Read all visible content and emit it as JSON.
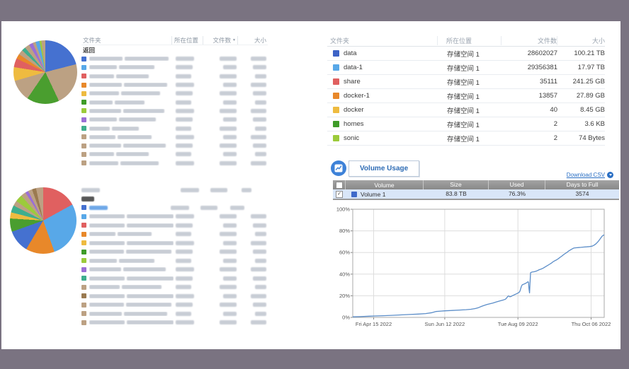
{
  "colors": {
    "frame": "#7a7381",
    "accent_blue": "#2e6cb5",
    "link_blue": "#2a6fc4",
    "chart_line": "#5b8dc8",
    "volume_row_bg": "#d9e6f8"
  },
  "left": {
    "table1": {
      "header": {
        "folder": "文件夹",
        "location": "所在位置",
        "count": "文件数",
        "size": "大小",
        "sort_arrow": "▼"
      },
      "back_label": "返回",
      "rows": [
        {
          "color": "#4571d0",
          "redacted": true
        },
        {
          "color": "#58a8e8",
          "redacted": true
        },
        {
          "color": "#e06060",
          "redacted": true
        },
        {
          "color": "#e8882a",
          "redacted": true
        },
        {
          "color": "#eebb40",
          "redacted": true
        },
        {
          "color": "#3f9c28",
          "redacted": true
        },
        {
          "color": "#9ccb3b",
          "redacted": true
        },
        {
          "color": "#9b6fd6",
          "redacted": true
        },
        {
          "color": "#3fae8e",
          "redacted": true
        },
        {
          "color": "#bca183",
          "redacted": true
        },
        {
          "color": "#bca183",
          "redacted": true
        },
        {
          "color": "#bca183",
          "redacted": true
        },
        {
          "color": "#bca183",
          "redacted": true
        }
      ]
    },
    "pie1": {
      "segments": [
        {
          "color": "#4571d0",
          "value": 21
        },
        {
          "color": "#bca183",
          "value": 22
        },
        {
          "color": "#4a9e2f",
          "value": 16.5
        },
        {
          "color": "#bca183",
          "value": 11
        },
        {
          "color": "#eebb40",
          "value": 7
        },
        {
          "color": "#e06060",
          "value": 4.5
        },
        {
          "color": "#e8882a",
          "value": 2.5
        },
        {
          "color": "#bca183",
          "value": 2.5
        },
        {
          "color": "#3fae8e",
          "value": 2
        },
        {
          "color": "#bca183",
          "value": 2.5
        },
        {
          "color": "#9b6fd6",
          "value": 2
        },
        {
          "color": "#bca183",
          "value": 1.5
        },
        {
          "color": "#58a8e8",
          "value": 2
        },
        {
          "color": "#9ccb3b",
          "value": 1
        },
        {
          "color": "#bca183",
          "value": 2
        }
      ]
    },
    "table2": {
      "redacted_header": true,
      "link_row_color": "#4571d0",
      "rows": [
        {
          "color": "#58a8e8",
          "redacted": true
        },
        {
          "color": "#e06060",
          "redacted": true
        },
        {
          "color": "#e8882a",
          "redacted": true
        },
        {
          "color": "#eebb40",
          "redacted": true
        },
        {
          "color": "#3f9c28",
          "redacted": true
        },
        {
          "color": "#9ccb3b",
          "redacted": true
        },
        {
          "color": "#9b6fd6",
          "redacted": true
        },
        {
          "color": "#3fae8e",
          "redacted": true
        },
        {
          "color": "#bca183",
          "redacted": true
        },
        {
          "color": "#9a7a50",
          "redacted": true
        },
        {
          "color": "#bca183",
          "redacted": true
        },
        {
          "color": "#bca183",
          "redacted": true
        },
        {
          "color": "#bca183",
          "redacted": true
        }
      ]
    },
    "pie2": {
      "segments": [
        {
          "color": "#e06060",
          "value": 17
        },
        {
          "color": "#58a8e8",
          "value": 27.5
        },
        {
          "color": "#e8882a",
          "value": 14
        },
        {
          "color": "#4571d0",
          "value": 11
        },
        {
          "color": "#4a9e2f",
          "value": 6.5
        },
        {
          "color": "#eebb40",
          "value": 3
        },
        {
          "color": "#3fae8e",
          "value": 3.5
        },
        {
          "color": "#bca183",
          "value": 2.5
        },
        {
          "color": "#9ccb3b",
          "value": 3.5
        },
        {
          "color": "#bca183",
          "value": 2.5
        },
        {
          "color": "#9b6fd6",
          "value": 1.5
        },
        {
          "color": "#bca183",
          "value": 2
        },
        {
          "color": "#9a7a50",
          "value": 2
        },
        {
          "color": "#bca183",
          "value": 3.5
        }
      ]
    }
  },
  "right": {
    "folder_table": {
      "headers": {
        "folder": "文件夹",
        "location": "所在位置",
        "count": "文件数",
        "size": "大小"
      },
      "rows": [
        {
          "name": "data",
          "color": "#3d63c6",
          "location": "存储空间 1",
          "count": "28602027",
          "size": "100.21 TB"
        },
        {
          "name": "data-1",
          "color": "#58a8e8",
          "location": "存储空间 1",
          "count": "29356381",
          "size": "17.97 TB"
        },
        {
          "name": "share",
          "color": "#e06060",
          "location": "存储空间 1",
          "count": "35111",
          "size": "241.25 GB"
        },
        {
          "name": "docker-1",
          "color": "#e8882a",
          "location": "存储空间 1",
          "count": "13857",
          "size": "27.89 GB"
        },
        {
          "name": "docker",
          "color": "#eebb40",
          "location": "存储空间 1",
          "count": "40",
          "size": "8.45 GB"
        },
        {
          "name": "homes",
          "color": "#3f9c28",
          "location": "存储空间 1",
          "count": "2",
          "size": "3.6 KB"
        },
        {
          "name": "sonic",
          "color": "#9ccb3b",
          "location": "存储空间 1",
          "count": "2",
          "size": "74 Bytes"
        }
      ]
    },
    "volume_usage": {
      "title": "Volume Usage",
      "download_label": "Download CSV",
      "table": {
        "headers": [
          "Volume",
          "Size",
          "Used",
          "Days to Full"
        ],
        "rows": [
          {
            "name": "Volume 1",
            "color": "#3f6ac9",
            "size": "83.8 TB",
            "used": "76.3%",
            "days_to_full": "3574",
            "checked": true
          }
        ]
      }
    }
  },
  "chart_data": {
    "type": "line",
    "ylim": [
      0,
      100
    ],
    "grid": true,
    "yticks": [
      "0%",
      "20%",
      "40%",
      "60%",
      "80%",
      "100%"
    ],
    "xticks": [
      {
        "pos": 0.083,
        "label": "Fri Apr 15 2022"
      },
      {
        "pos": 0.366,
        "label": "Sun Jun 12 2022"
      },
      {
        "pos": 0.657,
        "label": "Tue Aug 09 2022"
      },
      {
        "pos": 0.948,
        "label": "Thu Oct 06 2022"
      }
    ],
    "series": [
      {
        "name": "Volume 1",
        "color": "#5b8dc8",
        "points": [
          [
            0.0,
            0.5
          ],
          [
            0.03,
            0.7
          ],
          [
            0.065,
            1.1
          ],
          [
            0.085,
            1.3
          ],
          [
            0.12,
            1.6
          ],
          [
            0.155,
            1.9
          ],
          [
            0.19,
            2.3
          ],
          [
            0.225,
            2.7
          ],
          [
            0.26,
            3.1
          ],
          [
            0.29,
            3.5
          ],
          [
            0.315,
            4.4
          ],
          [
            0.33,
            5.4
          ],
          [
            0.35,
            5.8
          ],
          [
            0.366,
            6.1
          ],
          [
            0.395,
            6.4
          ],
          [
            0.425,
            6.8
          ],
          [
            0.45,
            7.1
          ],
          [
            0.47,
            7.5
          ],
          [
            0.487,
            8.2
          ],
          [
            0.5,
            9.0
          ],
          [
            0.512,
            10.2
          ],
          [
            0.524,
            11.2
          ],
          [
            0.535,
            12.0
          ],
          [
            0.545,
            12.6
          ],
          [
            0.557,
            13.3
          ],
          [
            0.57,
            14.2
          ],
          [
            0.582,
            15.0
          ],
          [
            0.592,
            15.7
          ],
          [
            0.6,
            16.2
          ],
          [
            0.607,
            16.8
          ],
          [
            0.612,
            18.0
          ],
          [
            0.616,
            19.3
          ],
          [
            0.62,
            19.9
          ],
          [
            0.625,
            19.0
          ],
          [
            0.63,
            19.4
          ],
          [
            0.636,
            20.2
          ],
          [
            0.643,
            21.0
          ],
          [
            0.65,
            21.7
          ],
          [
            0.656,
            22.4
          ],
          [
            0.661,
            23.1
          ],
          [
            0.665,
            24.4
          ],
          [
            0.668,
            26.6
          ],
          [
            0.671,
            28.9
          ],
          [
            0.674,
            30.1
          ],
          [
            0.679,
            30.6
          ],
          [
            0.684,
            31.1
          ],
          [
            0.689,
            31.7
          ],
          [
            0.693,
            32.3
          ],
          [
            0.697,
            33.0
          ],
          [
            0.699,
            32.5
          ],
          [
            0.701,
            26.0
          ],
          [
            0.703,
            22.6
          ],
          [
            0.705,
            32.0
          ],
          [
            0.707,
            41.3
          ],
          [
            0.712,
            41.9
          ],
          [
            0.722,
            42.2
          ],
          [
            0.732,
            43.0
          ],
          [
            0.742,
            44.1
          ],
          [
            0.75,
            44.8
          ],
          [
            0.758,
            45.6
          ],
          [
            0.766,
            46.8
          ],
          [
            0.774,
            47.9
          ],
          [
            0.782,
            49.0
          ],
          [
            0.79,
            50.2
          ],
          [
            0.797,
            51.5
          ],
          [
            0.804,
            52.4
          ],
          [
            0.811,
            53.3
          ],
          [
            0.818,
            54.4
          ],
          [
            0.825,
            55.6
          ],
          [
            0.832,
            56.8
          ],
          [
            0.839,
            58.1
          ],
          [
            0.845,
            59.1
          ],
          [
            0.851,
            60.0
          ],
          [
            0.858,
            61.3
          ],
          [
            0.865,
            62.3
          ],
          [
            0.872,
            63.3
          ],
          [
            0.879,
            64.1
          ],
          [
            0.888,
            64.4
          ],
          [
            0.898,
            64.6
          ],
          [
            0.908,
            64.8
          ],
          [
            0.918,
            65.0
          ],
          [
            0.93,
            65.2
          ],
          [
            0.942,
            65.5
          ],
          [
            0.952,
            65.9
          ],
          [
            0.96,
            66.8
          ],
          [
            0.968,
            68.2
          ],
          [
            0.976,
            70.2
          ],
          [
            0.984,
            72.6
          ],
          [
            0.991,
            74.9
          ],
          [
            0.996,
            75.9
          ],
          [
            1.0,
            76.3
          ]
        ]
      }
    ]
  }
}
